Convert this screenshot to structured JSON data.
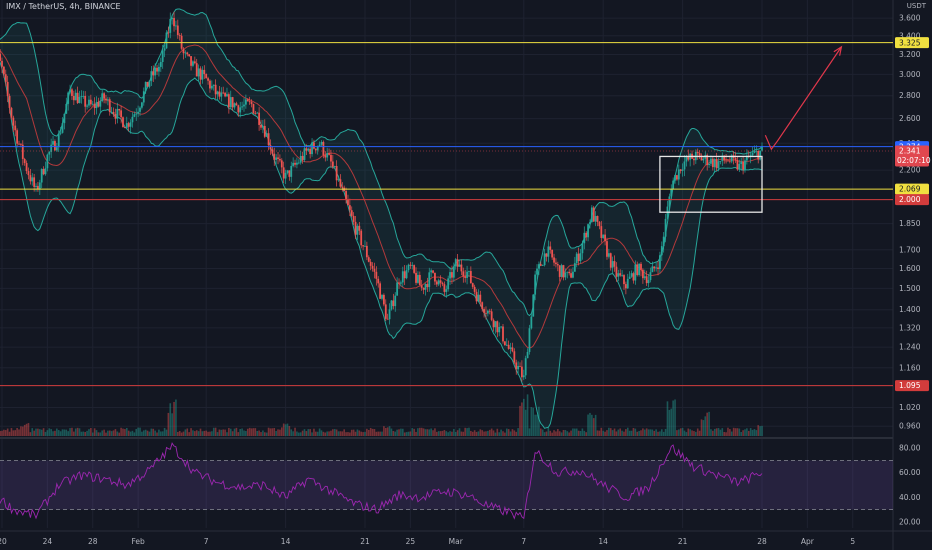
{
  "header": {
    "symbol_line": "IMX / TetherUS, 4h, BINANCE",
    "currency": "USDT"
  },
  "colors": {
    "bg": "#131722",
    "up": "#26a69a",
    "down": "#ef5350",
    "band": "#26a69a",
    "band_fill": "rgba(38,166,154,0.10)",
    "ma": "#b2393b",
    "rsi": "#9c27b0",
    "rsi_fill": "rgba(126,87,194,0.18)",
    "yellow": "#f0e040",
    "red_line": "#d23c3c",
    "blue_line": "#2962ff",
    "arrow": "#e0374b",
    "box": "#e6e6e6"
  },
  "chart_data": [
    {
      "type": "candlestick",
      "title": "IMX / TetherUS, 4h, BINANCE",
      "ylabel": "USDT",
      "y_scale": "log",
      "ylim": [
        0.93,
        3.72
      ],
      "y_ticks": [
        3.6,
        3.4,
        3.2,
        3.0,
        2.8,
        2.6,
        2.4,
        2.2,
        2.0,
        1.85,
        1.7,
        1.6,
        1.5,
        1.4,
        1.32,
        1.24,
        1.16,
        1.095,
        1.02,
        0.96
      ],
      "x_tick_labels": [
        "20",
        "24",
        "28",
        "Feb",
        "7",
        "14",
        "21",
        "25",
        "Mar",
        "7",
        "14",
        "21",
        "28",
        "Apr",
        "5"
      ],
      "x_tick_dates": [
        "2022-01-20",
        "2022-01-24",
        "2022-01-28",
        "2022-02-01",
        "2022-02-07",
        "2022-02-14",
        "2022-02-21",
        "2022-02-25",
        "2022-03-01",
        "2022-03-07",
        "2022-03-14",
        "2022-03-21",
        "2022-03-28",
        "2022-04-01",
        "2022-04-05"
      ],
      "close_path": [
        {
          "date": "2022-01-19",
          "close": 3.4
        },
        {
          "date": "2022-01-20",
          "close": 3.05
        },
        {
          "date": "2022-01-21",
          "close": 2.55
        },
        {
          "date": "2022-01-22",
          "close": 2.25
        },
        {
          "date": "2022-01-23",
          "close": 2.05
        },
        {
          "date": "2022-01-24",
          "close": 2.3
        },
        {
          "date": "2022-01-25",
          "close": 2.45
        },
        {
          "date": "2022-01-26",
          "close": 2.85
        },
        {
          "date": "2022-01-27",
          "close": 2.75
        },
        {
          "date": "2022-01-28",
          "close": 2.7
        },
        {
          "date": "2022-01-29",
          "close": 2.78
        },
        {
          "date": "2022-01-30",
          "close": 2.65
        },
        {
          "date": "2022-01-31",
          "close": 2.55
        },
        {
          "date": "2022-02-01",
          "close": 2.7
        },
        {
          "date": "2022-02-02",
          "close": 2.95
        },
        {
          "date": "2022-02-03",
          "close": 3.1
        },
        {
          "date": "2022-02-04",
          "close": 3.65
        },
        {
          "date": "2022-02-05",
          "close": 3.2
        },
        {
          "date": "2022-02-06",
          "close": 3.05
        },
        {
          "date": "2022-02-07",
          "close": 2.95
        },
        {
          "date": "2022-02-08",
          "close": 2.8
        },
        {
          "date": "2022-02-09",
          "close": 2.75
        },
        {
          "date": "2022-02-10",
          "close": 2.7
        },
        {
          "date": "2022-02-11",
          "close": 2.72
        },
        {
          "date": "2022-02-12",
          "close": 2.55
        },
        {
          "date": "2022-02-13",
          "close": 2.3
        },
        {
          "date": "2022-02-14",
          "close": 2.15
        },
        {
          "date": "2022-02-15",
          "close": 2.25
        },
        {
          "date": "2022-02-16",
          "close": 2.35
        },
        {
          "date": "2022-02-17",
          "close": 2.4
        },
        {
          "date": "2022-02-18",
          "close": 2.25
        },
        {
          "date": "2022-02-19",
          "close": 2.05
        },
        {
          "date": "2022-02-20",
          "close": 1.85
        },
        {
          "date": "2022-02-21",
          "close": 1.7
        },
        {
          "date": "2022-02-22",
          "close": 1.55
        },
        {
          "date": "2022-02-23",
          "close": 1.35
        },
        {
          "date": "2022-02-24",
          "close": 1.55
        },
        {
          "date": "2022-02-25",
          "close": 1.6
        },
        {
          "date": "2022-02-26",
          "close": 1.5
        },
        {
          "date": "2022-02-27",
          "close": 1.58
        },
        {
          "date": "2022-02-28",
          "close": 1.48
        },
        {
          "date": "2022-03-01",
          "close": 1.62
        },
        {
          "date": "2022-03-02",
          "close": 1.58
        },
        {
          "date": "2022-03-03",
          "close": 1.45
        },
        {
          "date": "2022-03-04",
          "close": 1.38
        },
        {
          "date": "2022-03-05",
          "close": 1.3
        },
        {
          "date": "2022-03-06",
          "close": 1.2
        },
        {
          "date": "2022-03-07",
          "close": 1.12
        },
        {
          "date": "2022-03-08",
          "close": 1.55
        },
        {
          "date": "2022-03-09",
          "close": 1.7
        },
        {
          "date": "2022-03-10",
          "close": 1.6
        },
        {
          "date": "2022-03-11",
          "close": 1.55
        },
        {
          "date": "2022-03-12",
          "close": 1.7
        },
        {
          "date": "2022-03-13",
          "close": 1.92
        },
        {
          "date": "2022-03-14",
          "close": 1.75
        },
        {
          "date": "2022-03-15",
          "close": 1.58
        },
        {
          "date": "2022-03-16",
          "close": 1.52
        },
        {
          "date": "2022-03-17",
          "close": 1.6
        },
        {
          "date": "2022-03-18",
          "close": 1.55
        },
        {
          "date": "2022-03-19",
          "close": 1.65
        },
        {
          "date": "2022-03-20",
          "close": 2.1
        },
        {
          "date": "2022-03-21",
          "close": 2.25
        },
        {
          "date": "2022-03-22",
          "close": 2.3
        },
        {
          "date": "2022-03-23",
          "close": 2.28
        },
        {
          "date": "2022-03-24",
          "close": 2.25
        },
        {
          "date": "2022-03-25",
          "close": 2.28
        },
        {
          "date": "2022-03-26",
          "close": 2.22
        },
        {
          "date": "2022-03-27",
          "close": 2.3
        },
        {
          "date": "2022-03-28",
          "close": 2.341
        }
      ],
      "volume_relative": [
        {
          "date": "2022-01-22",
          "value": 0.35
        },
        {
          "date": "2022-02-04",
          "value": 0.9
        },
        {
          "date": "2022-02-14",
          "value": 0.3
        },
        {
          "date": "2022-02-23",
          "value": 0.25
        },
        {
          "date": "2022-03-07",
          "value": 1.0
        },
        {
          "date": "2022-03-08",
          "value": 0.7
        },
        {
          "date": "2022-03-13",
          "value": 0.6
        },
        {
          "date": "2022-03-20",
          "value": 0.9
        },
        {
          "date": "2022-03-23",
          "value": 0.6
        },
        {
          "date": "2022-03-28",
          "value": 0.3
        }
      ],
      "horizontal_levels": [
        {
          "value": 3.325,
          "label": "3.325",
          "style": "yellow"
        },
        {
          "value": 2.374,
          "label": "2.374",
          "style": "blue"
        },
        {
          "value": 2.069,
          "label": "2.069",
          "style": "yellow"
        },
        {
          "value": 2.0,
          "label": "2.000",
          "style": "red"
        },
        {
          "value": 1.095,
          "label": "1.095",
          "style": "red"
        }
      ],
      "last_price": {
        "value": 2.341,
        "label": "2.341",
        "countdown": "02:07:10"
      },
      "consolidation_box": {
        "start": "2022-03-19",
        "end": "2022-03-28",
        "top": 2.3,
        "bottom": 1.92
      },
      "projection_arrow": {
        "from": {
          "date": "2022-03-29",
          "value": 2.37
        },
        "to": {
          "date": "2022-04-04",
          "value": 3.28
        }
      }
    },
    {
      "type": "line",
      "name": "RSI",
      "ylim": [
        15,
        85
      ],
      "y_ticks": [
        80.0,
        60.0,
        40.0,
        20.0
      ],
      "bands": [
        70,
        30
      ],
      "values": [
        {
          "date": "2022-01-19",
          "value": 45
        },
        {
          "date": "2022-01-21",
          "value": 30
        },
        {
          "date": "2022-01-23",
          "value": 25
        },
        {
          "date": "2022-01-25",
          "value": 50
        },
        {
          "date": "2022-01-27",
          "value": 58
        },
        {
          "date": "2022-01-29",
          "value": 55
        },
        {
          "date": "2022-01-31",
          "value": 50
        },
        {
          "date": "2022-02-02",
          "value": 62
        },
        {
          "date": "2022-02-04",
          "value": 82
        },
        {
          "date": "2022-02-06",
          "value": 60
        },
        {
          "date": "2022-02-08",
          "value": 52
        },
        {
          "date": "2022-02-10",
          "value": 48
        },
        {
          "date": "2022-02-12",
          "value": 50
        },
        {
          "date": "2022-02-14",
          "value": 40
        },
        {
          "date": "2022-02-16",
          "value": 55
        },
        {
          "date": "2022-02-18",
          "value": 45
        },
        {
          "date": "2022-02-20",
          "value": 35
        },
        {
          "date": "2022-02-22",
          "value": 30
        },
        {
          "date": "2022-02-24",
          "value": 42
        },
        {
          "date": "2022-02-26",
          "value": 40
        },
        {
          "date": "2022-02-28",
          "value": 45
        },
        {
          "date": "2022-03-02",
          "value": 42
        },
        {
          "date": "2022-03-04",
          "value": 32
        },
        {
          "date": "2022-03-06",
          "value": 27
        },
        {
          "date": "2022-03-07",
          "value": 22
        },
        {
          "date": "2022-03-08",
          "value": 78
        },
        {
          "date": "2022-03-10",
          "value": 60
        },
        {
          "date": "2022-03-12",
          "value": 62
        },
        {
          "date": "2022-03-14",
          "value": 50
        },
        {
          "date": "2022-03-16",
          "value": 40
        },
        {
          "date": "2022-03-18",
          "value": 48
        },
        {
          "date": "2022-03-20",
          "value": 81
        },
        {
          "date": "2022-03-22",
          "value": 65
        },
        {
          "date": "2022-03-24",
          "value": 58
        },
        {
          "date": "2022-03-26",
          "value": 52
        },
        {
          "date": "2022-03-28",
          "value": 60
        }
      ]
    }
  ]
}
